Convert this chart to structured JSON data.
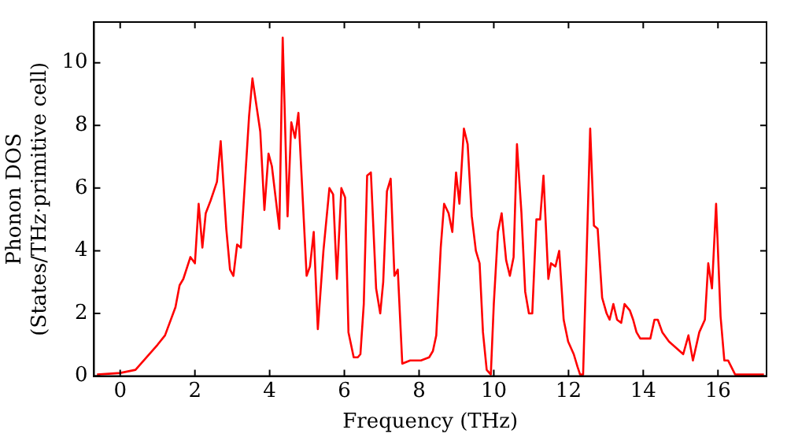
{
  "chart_data": {
    "type": "line",
    "xlabel": "Frequency (THz)",
    "ylabel": "Phonon DOS\n(States/THz·primitive cell)",
    "xlim": [
      -0.7,
      17.3
    ],
    "ylim": [
      0,
      11.3
    ],
    "xticks": [
      0,
      2,
      4,
      6,
      8,
      10,
      12,
      14,
      16
    ],
    "yticks": [
      0,
      2,
      4,
      6,
      8,
      10
    ],
    "grid": false,
    "legend": false,
    "marker": "none",
    "line_style": "solid",
    "series": [
      {
        "color": "#ff0000",
        "x": [
          -0.62,
          0.0,
          0.41,
          1.0,
          1.2,
          1.48,
          1.59,
          1.69,
          1.88,
          2.0,
          2.1,
          2.2,
          2.29,
          2.42,
          2.59,
          2.69,
          2.84,
          2.94,
          3.03,
          3.13,
          3.23,
          3.45,
          3.54,
          3.75,
          3.86,
          3.97,
          4.06,
          4.26,
          4.35,
          4.48,
          4.58,
          4.68,
          4.77,
          4.99,
          5.08,
          5.18,
          5.29,
          5.44,
          5.6,
          5.7,
          5.8,
          5.92,
          6.02,
          6.11,
          6.25,
          6.36,
          6.43,
          6.52,
          6.61,
          6.71,
          6.85,
          6.96,
          7.04,
          7.14,
          7.24,
          7.34,
          7.43,
          7.55,
          7.76,
          8.05,
          8.27,
          8.37,
          8.46,
          8.58,
          8.67,
          8.79,
          8.89,
          8.99,
          9.08,
          9.2,
          9.3,
          9.41,
          9.52,
          9.62,
          9.71,
          9.81,
          9.92,
          10.0,
          10.11,
          10.21,
          10.33,
          10.43,
          10.53,
          10.62,
          10.74,
          10.84,
          10.94,
          11.03,
          11.14,
          11.24,
          11.33,
          11.46,
          11.53,
          11.65,
          11.75,
          11.87,
          11.99,
          12.14,
          12.24,
          12.31,
          12.39,
          12.49,
          12.58,
          12.68,
          12.78,
          12.9,
          13.02,
          13.1,
          13.2,
          13.3,
          13.41,
          13.5,
          13.64,
          13.73,
          13.82,
          13.92,
          14.07,
          14.19,
          14.3,
          14.39,
          14.51,
          14.69,
          14.88,
          15.07,
          15.21,
          15.33,
          15.5,
          15.65,
          15.74,
          15.84,
          15.95,
          16.07,
          16.17,
          16.27,
          16.46,
          17.23
        ],
        "values": [
          0.05,
          0.1,
          0.2,
          1.0,
          1.3,
          2.2,
          2.9,
          3.1,
          3.8,
          3.6,
          5.5,
          4.1,
          5.2,
          5.6,
          6.2,
          7.5,
          4.7,
          3.4,
          3.2,
          4.2,
          4.1,
          8.3,
          9.5,
          7.8,
          5.3,
          7.1,
          6.7,
          4.7,
          10.8,
          5.1,
          8.1,
          7.6,
          8.4,
          3.2,
          3.5,
          4.6,
          1.5,
          4.0,
          6.0,
          5.8,
          3.1,
          6.0,
          5.7,
          1.4,
          0.6,
          0.6,
          0.7,
          2.3,
          6.4,
          6.5,
          2.8,
          2.0,
          3.0,
          5.9,
          6.3,
          3.2,
          3.4,
          0.4,
          0.5,
          0.5,
          0.6,
          0.8,
          1.3,
          4.1,
          5.5,
          5.2,
          4.6,
          6.5,
          5.5,
          7.9,
          7.4,
          5.1,
          4.0,
          3.6,
          1.4,
          0.2,
          0.05,
          2.3,
          4.6,
          5.2,
          3.7,
          3.2,
          3.8,
          7.4,
          5.2,
          2.7,
          2.0,
          2.0,
          5.0,
          5.0,
          6.4,
          3.1,
          3.6,
          3.5,
          4.0,
          1.8,
          1.1,
          0.7,
          0.3,
          0.05,
          0.05,
          4.1,
          7.9,
          4.8,
          4.7,
          2.5,
          2.0,
          1.8,
          2.3,
          1.8,
          1.7,
          2.3,
          2.1,
          1.8,
          1.4,
          1.2,
          1.2,
          1.2,
          1.8,
          1.8,
          1.4,
          1.1,
          0.9,
          0.7,
          1.3,
          0.5,
          1.4,
          1.8,
          3.6,
          2.8,
          5.5,
          1.9,
          0.5,
          0.5,
          0.05,
          0.05
        ]
      }
    ]
  }
}
